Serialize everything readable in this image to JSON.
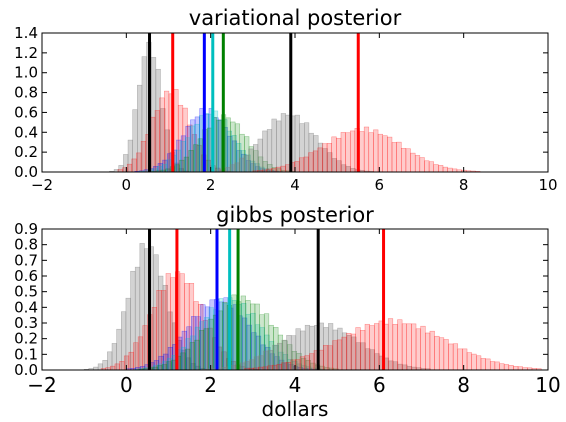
{
  "chart_data": [
    {
      "type": "bar",
      "title": "variational posterior",
      "xlabel": "",
      "ylabel": "",
      "xlim": [
        -2,
        10
      ],
      "ylim": [
        0,
        1.4
      ],
      "xticks": [
        "−2",
        "0",
        "2",
        "4",
        "6",
        "8",
        "10"
      ],
      "yticks": [
        "0.0",
        "0.2",
        "0.4",
        "0.6",
        "0.8",
        "1.0",
        "1.2",
        "1.4"
      ],
      "histograms": [
        {
          "color": "#808080",
          "opacity": 0.35,
          "mean": 0.55,
          "sd": 0.28,
          "peak": 1.28,
          "range": [
            -0.4,
            1.6
          ]
        },
        {
          "color": "#ff0000",
          "opacity": 0.2,
          "mean": 1.05,
          "sd": 0.45,
          "peak": 0.82,
          "range": [
            -0.2,
            2.6
          ]
        },
        {
          "color": "#0000ff",
          "opacity": 0.22,
          "mean": 1.9,
          "sd": 0.55,
          "peak": 0.62,
          "range": [
            0.2,
            3.8
          ]
        },
        {
          "color": "#00bfbf",
          "opacity": 0.22,
          "mean": 2.0,
          "sd": 0.55,
          "peak": 0.6,
          "range": [
            0.3,
            3.8
          ]
        },
        {
          "color": "#008000",
          "opacity": 0.2,
          "mean": 2.3,
          "sd": 0.55,
          "peak": 0.56,
          "range": [
            0.6,
            4.0
          ]
        },
        {
          "color": "#808080",
          "opacity": 0.35,
          "mean": 3.85,
          "sd": 0.65,
          "peak": 0.58,
          "range": [
            1.8,
            6.0
          ]
        },
        {
          "color": "#ff0000",
          "opacity": 0.2,
          "mean": 5.6,
          "sd": 0.95,
          "peak": 0.43,
          "range": [
            3.0,
            8.3
          ]
        }
      ],
      "vlines": [
        {
          "x": 0.55,
          "color": "#000000"
        },
        {
          "x": 1.1,
          "color": "#ff0000"
        },
        {
          "x": 1.85,
          "color": "#0000ff"
        },
        {
          "x": 2.05,
          "color": "#00bfbf"
        },
        {
          "x": 2.3,
          "color": "#008000"
        },
        {
          "x": 3.9,
          "color": "#000000"
        },
        {
          "x": 5.5,
          "color": "#ff0000"
        }
      ]
    },
    {
      "type": "bar",
      "title": "gibbs posterior",
      "xlabel": "dollars",
      "ylabel": "",
      "xlim": [
        -2,
        10
      ],
      "ylim": [
        0,
        0.9
      ],
      "xticks": [
        "−2",
        "0",
        "2",
        "4",
        "6",
        "8",
        "10"
      ],
      "yticks": [
        "0.0",
        "0.1",
        "0.2",
        "0.3",
        "0.4",
        "0.5",
        "0.6",
        "0.7",
        "0.8",
        "0.9"
      ],
      "histograms": [
        {
          "color": "#808080",
          "opacity": 0.35,
          "mean": 0.5,
          "sd": 0.45,
          "peak": 0.8,
          "range": [
            -1.0,
            2.0
          ]
        },
        {
          "color": "#ff0000",
          "opacity": 0.2,
          "mean": 1.2,
          "sd": 0.6,
          "peak": 0.62,
          "range": [
            -0.6,
            3.4
          ]
        },
        {
          "color": "#0000ff",
          "opacity": 0.22,
          "mean": 2.2,
          "sd": 0.75,
          "peak": 0.45,
          "range": [
            0.0,
            4.6
          ]
        },
        {
          "color": "#00bfbf",
          "opacity": 0.22,
          "mean": 2.45,
          "sd": 0.75,
          "peak": 0.45,
          "range": [
            0.2,
            4.8
          ]
        },
        {
          "color": "#008000",
          "opacity": 0.2,
          "mean": 2.7,
          "sd": 0.8,
          "peak": 0.46,
          "range": [
            0.3,
            5.0
          ]
        },
        {
          "color": "#808080",
          "opacity": 0.35,
          "mean": 4.6,
          "sd": 0.95,
          "peak": 0.29,
          "range": [
            1.6,
            7.2
          ]
        },
        {
          "color": "#ff0000",
          "opacity": 0.2,
          "mean": 6.3,
          "sd": 1.3,
          "peak": 0.31,
          "range": [
            2.8,
            9.8
          ]
        }
      ],
      "vlines": [
        {
          "x": 0.55,
          "color": "#000000"
        },
        {
          "x": 1.2,
          "color": "#ff0000"
        },
        {
          "x": 2.15,
          "color": "#0000ff"
        },
        {
          "x": 2.45,
          "color": "#00bfbf"
        },
        {
          "x": 2.65,
          "color": "#008000"
        },
        {
          "x": 4.55,
          "color": "#000000"
        },
        {
          "x": 6.1,
          "color": "#ff0000"
        }
      ]
    }
  ]
}
